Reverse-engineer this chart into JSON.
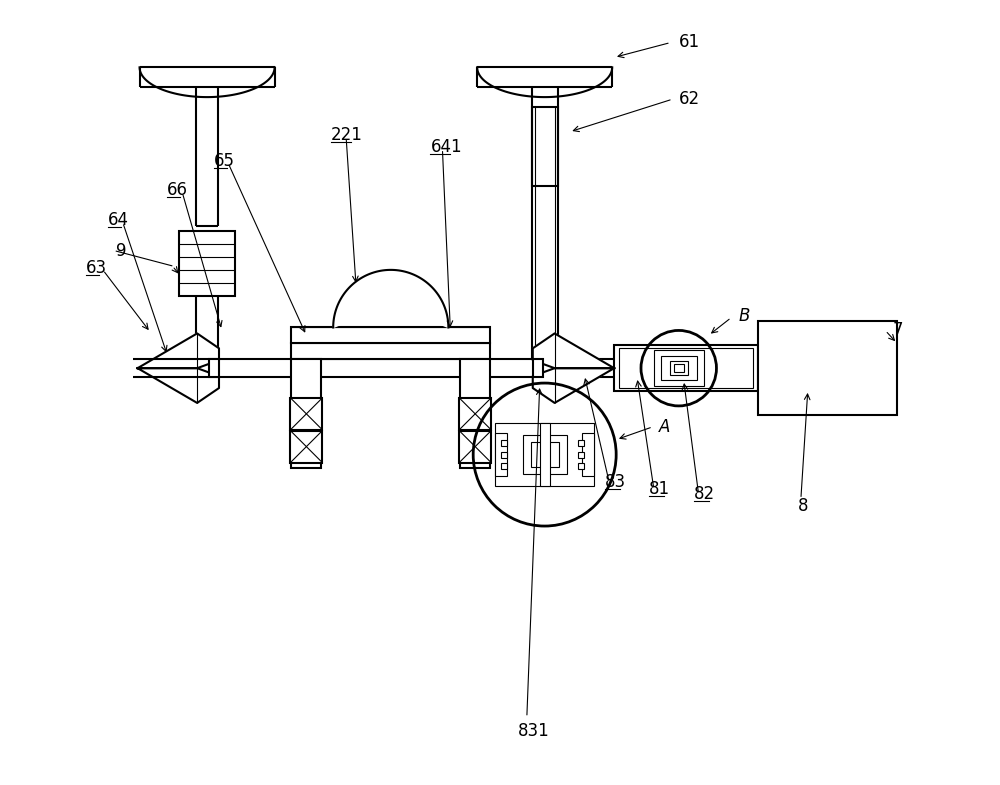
{
  "bg": "#ffffff",
  "lc": "#000000",
  "lw": 1.5,
  "lw_thin": 0.8,
  "figw": 10.0,
  "figh": 7.85,
  "dpi": 100,
  "fs": 12
}
